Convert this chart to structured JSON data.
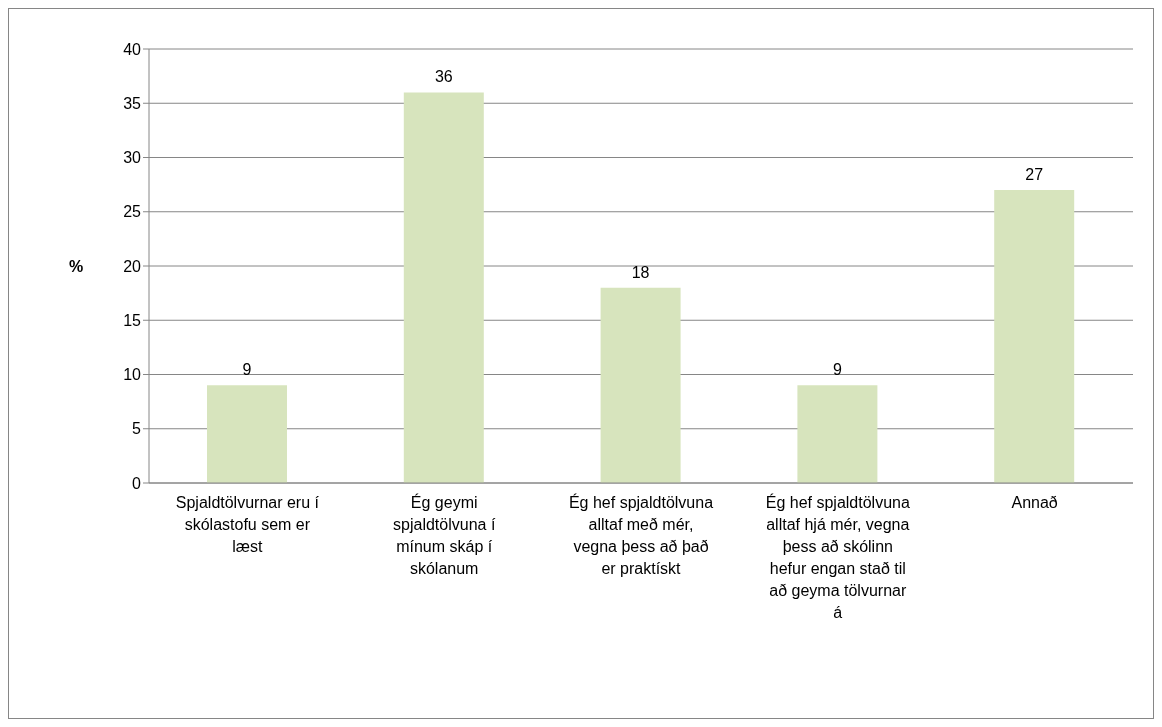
{
  "chart_data": {
    "type": "bar",
    "ylabel": "%",
    "categories": [
      "Spjaldtölvurnar eru í skólastofu sem er læst",
      "Ég geymi spjaldtölvuna í mínum skáp í skólanum",
      "Ég hef spjaldtölvuna alltaf með mér, vegna þess að það er praktískt",
      "Ég hef spjaldtölvuna alltaf hjá mér, vegna þess að skólinn hefur engan stað til að geyma tölvurnar á",
      "Annað"
    ],
    "values": [
      9,
      36,
      18,
      9,
      27
    ],
    "color": "#d7e4bd",
    "ylim": [
      0,
      40
    ],
    "yticks": [
      0,
      5,
      10,
      15,
      20,
      25,
      30,
      35,
      40
    ],
    "grid": "y",
    "data_labels": true
  }
}
